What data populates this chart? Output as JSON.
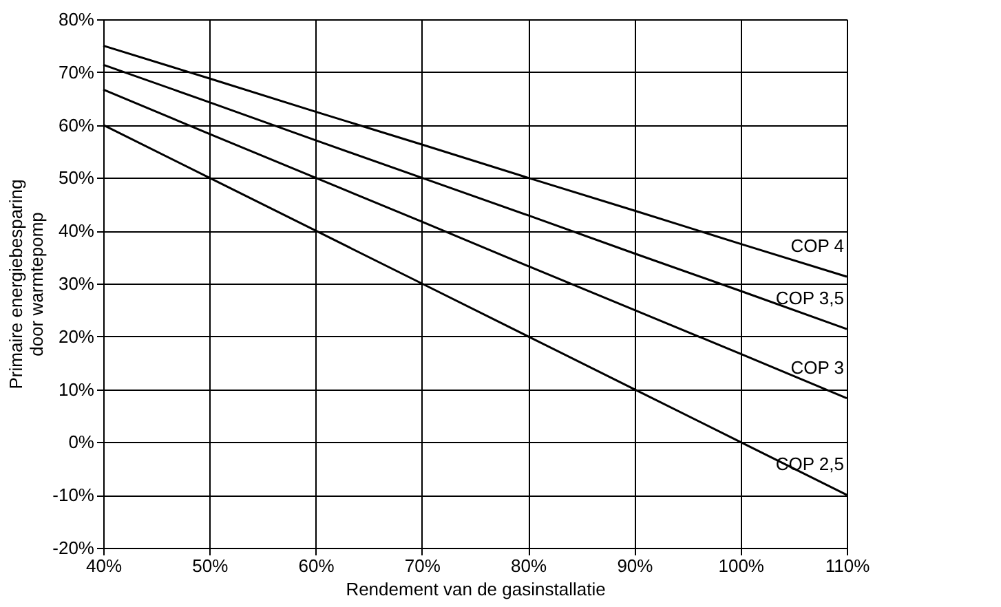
{
  "chart_data": {
    "type": "line",
    "xlabel": "Rendement van de gasinstallatie",
    "ylabel": "Primaire energiebesparing door warmtepomp",
    "categories": [
      "40%",
      "50%",
      "60%",
      "70%",
      "80%",
      "90%",
      "100%",
      "110%"
    ],
    "series": [
      {
        "name": "COP 4",
        "color": "#000000",
        "values": [
          75,
          68.8,
          62.5,
          56.3,
          50,
          43.8,
          37.5,
          31.3
        ]
      },
      {
        "name": "COP 3,5",
        "color": "#000000",
        "values": [
          71.4,
          64.3,
          57.1,
          50,
          42.9,
          35.7,
          28.6,
          21.4
        ]
      },
      {
        "name": "COP 3",
        "color": "#000000",
        "values": [
          66.7,
          58.3,
          50,
          41.7,
          33.3,
          25,
          16.7,
          8.3
        ]
      },
      {
        "name": "COP 2,5",
        "color": "#000000",
        "values": [
          60,
          50,
          40,
          30,
          20,
          10,
          0,
          -10
        ]
      }
    ],
    "ylim": [
      -20,
      80
    ],
    "yticks": [
      {
        "value": -20,
        "label": "-20%"
      },
      {
        "value": -10,
        "label": "-10%"
      },
      {
        "value": 0,
        "label": "0%"
      },
      {
        "value": 10,
        "label": "10%"
      },
      {
        "value": 20,
        "label": "20%"
      },
      {
        "value": 30,
        "label": "30%"
      },
      {
        "value": 40,
        "label": "40%"
      },
      {
        "value": 50,
        "label": "50%"
      },
      {
        "value": 60,
        "label": "60%"
      },
      {
        "value": 70,
        "label": "70%"
      },
      {
        "value": 80,
        "label": "80%"
      }
    ],
    "grid": true,
    "marker": "none",
    "line_style": "solid"
  }
}
